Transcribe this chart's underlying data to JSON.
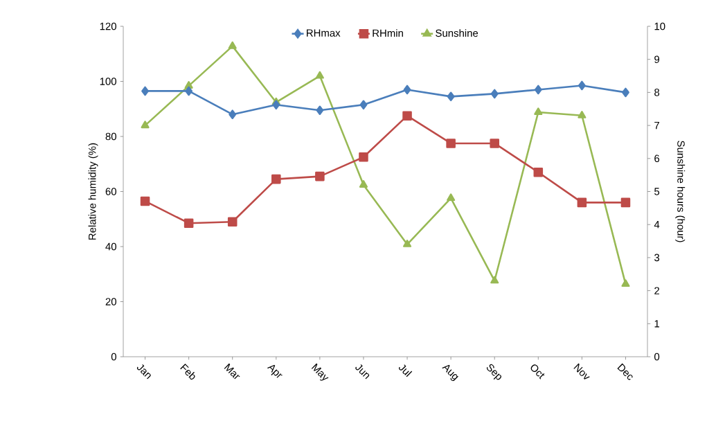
{
  "chart_data": {
    "type": "line",
    "categories": [
      "Jan",
      "Feb",
      "Mar",
      "Apr",
      "May",
      "Jun",
      "Jul",
      "Aug",
      "Sep",
      "Oct",
      "Nov",
      "Dec"
    ],
    "series": [
      {
        "name": "RHmax",
        "color": "#4a7ebb",
        "marker": "diamond",
        "values": [
          96.5,
          96.5,
          88,
          91.5,
          89.5,
          91.5,
          97,
          94.5,
          95.5,
          97,
          98.5,
          96
        ]
      },
      {
        "name": "RHmin",
        "color": "#be4b48",
        "marker": "square",
        "values": [
          56.5,
          48.5,
          49,
          64.5,
          65.5,
          72.5,
          87.5,
          77.5,
          77.5,
          67,
          56,
          56
        ]
      },
      {
        "name": "Sunshine",
        "color": "#98b954",
        "marker": "triangle",
        "axis": "y2",
        "values": [
          7.0,
          8.2,
          9.4,
          7.7,
          8.5,
          5.2,
          3.4,
          4.8,
          2.3,
          7.4,
          7.3,
          2.2
        ]
      }
    ],
    "ylabel": "Relative humidity (%)",
    "y2label": "Sunshine hours (hour)",
    "ylim": [
      0,
      120
    ],
    "yticks": [
      0,
      20,
      40,
      60,
      80,
      100,
      120
    ],
    "y2lim": [
      0,
      10
    ],
    "y2ticks": [
      0,
      1,
      2,
      3,
      4,
      5,
      6,
      7,
      8,
      9,
      10
    ],
    "legend": "top"
  }
}
